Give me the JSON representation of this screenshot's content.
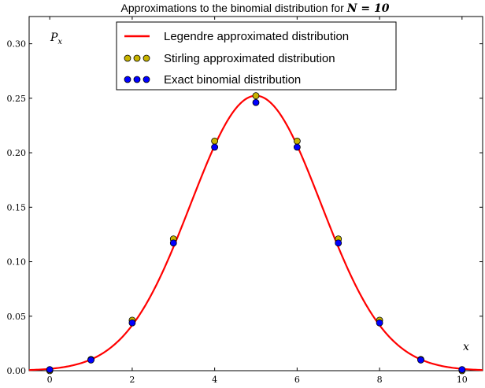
{
  "chart_data": {
    "type": "line",
    "title": "Approximations to the binomial distribution for N = 10",
    "xlabel": "x",
    "ylabel": "P_x",
    "xlim": [
      -0.5,
      10.5
    ],
    "ylim": [
      0,
      0.325
    ],
    "x_ticks": [
      0,
      2,
      4,
      6,
      8,
      10
    ],
    "y_ticks": [
      0.0,
      0.05,
      0.1,
      0.15,
      0.2,
      0.25,
      0.3
    ],
    "x_tick_labels": [
      "0",
      "2",
      "4",
      "6",
      "8",
      "10"
    ],
    "y_tick_labels": [
      "0.00",
      "0.05",
      "0.10",
      "0.15",
      "0.20",
      "0.25",
      "0.30"
    ],
    "grid": false,
    "legend_position": "top-center",
    "series": [
      {
        "name": "Legendre approximated distribution",
        "kind": "line",
        "color": "#ff0000",
        "mean": 5,
        "variance": 2.5,
        "x_range": [
          -0.5,
          10.5
        ]
      },
      {
        "name": "Stirling approximated distribution",
        "kind": "scatter",
        "color": "#c8b400",
        "x": [
          0,
          1,
          2,
          3,
          4,
          5,
          6,
          7,
          8,
          9,
          10
        ],
        "y": [
          0.0,
          0.0103,
          0.0463,
          0.1209,
          0.2107,
          0.2523,
          0.2107,
          0.1209,
          0.0463,
          0.0103,
          0.0
        ]
      },
      {
        "name": "Exact binomial distribution",
        "kind": "scatter",
        "color": "#0000ff",
        "x": [
          0,
          1,
          2,
          3,
          4,
          5,
          6,
          7,
          8,
          9,
          10
        ],
        "y": [
          0.001,
          0.0098,
          0.0439,
          0.1172,
          0.2051,
          0.2461,
          0.2051,
          0.1172,
          0.0439,
          0.0098,
          0.001
        ]
      }
    ]
  }
}
